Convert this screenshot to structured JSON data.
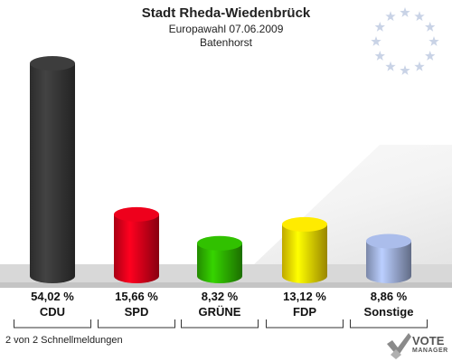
{
  "header": {
    "title": "Stadt Rheda-Wiedenbrück",
    "subtitle": "Europawahl 07.06.2009",
    "district": "Batenhorst"
  },
  "footer": {
    "status": "2 von 2 Schnellmeldungen"
  },
  "logo": {
    "vote": "VOTE",
    "manager": "MANAGER"
  },
  "chart_data": {
    "type": "bar",
    "categories": [
      "CDU",
      "SPD",
      "GRÜNE",
      "FDP",
      "Sonstige"
    ],
    "values": [
      54.02,
      15.66,
      8.32,
      13.12,
      8.86
    ],
    "value_labels": [
      "54,02 %",
      "15,66 %",
      "8,32 %",
      "13,12 %",
      "8,86 %"
    ],
    "colors": [
      "#3a3a3a",
      "#e3001b",
      "#2fb800",
      "#ffe000",
      "#a3b4e0"
    ],
    "ylim": [
      0,
      54.02
    ],
    "grid": false,
    "legend": "none"
  }
}
